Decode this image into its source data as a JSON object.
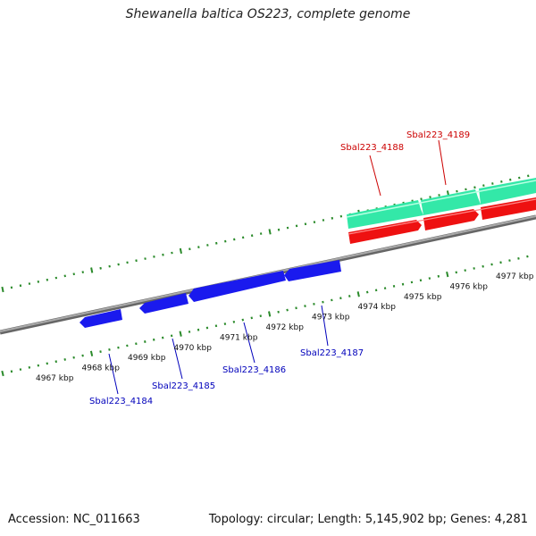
{
  "title": "Shewanella baltica OS223, complete genome",
  "footer": {
    "accession": "Accession: NC_011663",
    "summary": "Topology: circular; Length: 5,145,902 bp; Genes: 4,281"
  },
  "colors": {
    "backbone": "#8a8a8a",
    "tick": "#2a8a2a",
    "forward_cds": "#ee1111",
    "forward_gene": "#33e8a8",
    "reverse_cds": "#1a1aee",
    "forward_label": "#cc0000",
    "reverse_label": "#0000bb"
  },
  "kbp_labels": [
    "4967 kbp",
    "4968 kbp",
    "4969 kbp",
    "4970 kbp",
    "4971 kbp",
    "4972 kbp",
    "4973 kbp",
    "4974 kbp",
    "4975 kbp",
    "4976 kbp",
    "4977 kbp"
  ],
  "forward_genes": [
    "Sbal223_4188",
    "Sbal223_4189"
  ],
  "reverse_genes": [
    "Sbal223_4184",
    "Sbal223_4185",
    "Sbal223_4186",
    "Sbal223_4187"
  ]
}
